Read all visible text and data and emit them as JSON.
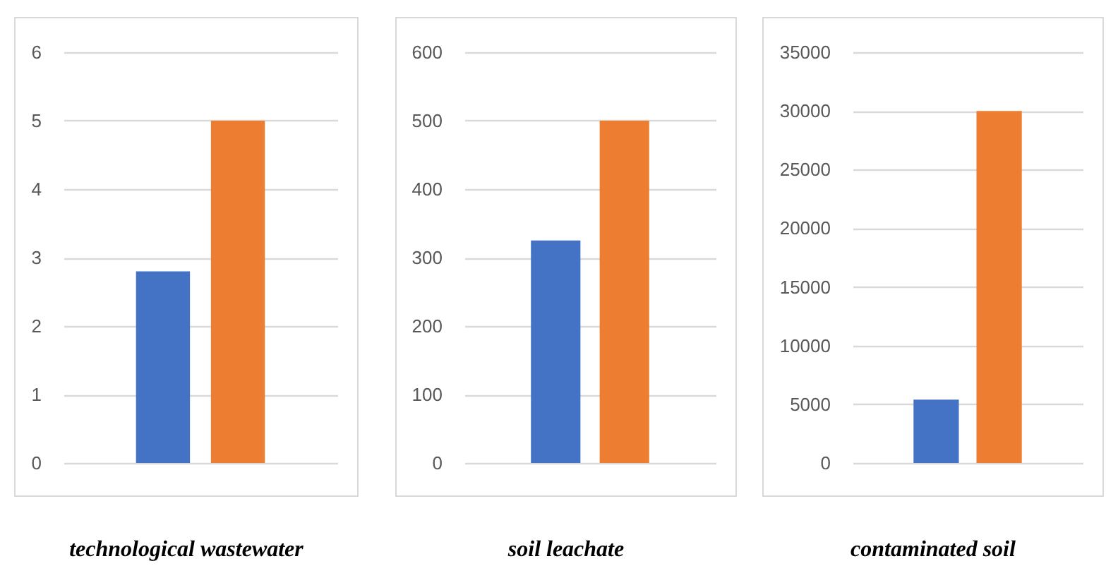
{
  "chart_data": [
    {
      "type": "bar",
      "xlabel": "technological wastewater",
      "categories": [
        null
      ],
      "ylim": [
        0,
        6
      ],
      "yticks": [
        0,
        1,
        2,
        3,
        4,
        5,
        6
      ],
      "grid": "y",
      "series": [
        {
          "color": "#4472c4",
          "values": [
            2.8
          ]
        },
        {
          "color": "#ed7d31",
          "values": [
            5
          ]
        }
      ]
    },
    {
      "type": "bar",
      "xlabel": "soil leachate",
      "categories": [
        null
      ],
      "ylim": [
        0,
        600
      ],
      "yticks": [
        0,
        100,
        200,
        300,
        400,
        500,
        600
      ],
      "grid": "y",
      "series": [
        {
          "color": "#4472c4",
          "values": [
            325
          ]
        },
        {
          "color": "#ed7d31",
          "values": [
            500
          ]
        }
      ]
    },
    {
      "type": "bar",
      "xlabel": "contaminated soil",
      "categories": [
        null
      ],
      "ylim": [
        0,
        35000
      ],
      "yticks": [
        0,
        5000,
        10000,
        15000,
        20000,
        25000,
        30000,
        35000
      ],
      "grid": "y",
      "series": [
        {
          "color": "#4472c4",
          "values": [
            5400
          ]
        },
        {
          "color": "#ed7d31",
          "values": [
            30000
          ]
        }
      ]
    }
  ]
}
